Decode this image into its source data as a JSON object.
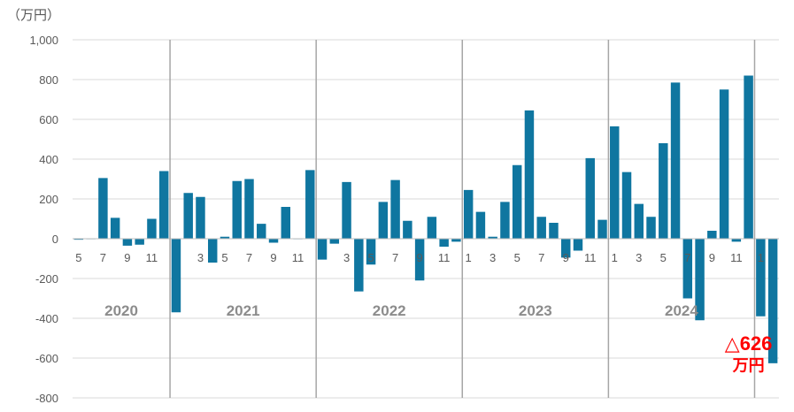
{
  "unit_label": "（万円）",
  "annotation": {
    "value": "△626",
    "unit": "万円",
    "color": "#ff0000"
  },
  "chart_data": {
    "type": "bar",
    "title": "",
    "xlabel": "",
    "ylabel": "（万円）",
    "ylim": [
      -800,
      1000
    ],
    "yticks": [
      1000,
      800,
      600,
      400,
      200,
      0,
      -200,
      -400,
      -600,
      -800
    ],
    "ytick_labels": [
      "1,000",
      "800",
      "600",
      "400",
      "200",
      "0",
      "-200",
      "-400",
      "-600",
      "-800"
    ],
    "grid": true,
    "bar_color": "#0f76a0",
    "years": [
      "2020",
      "2021",
      "2022",
      "2023",
      "2024"
    ],
    "categories": [
      "2020-05",
      "2020-06",
      "2020-07",
      "2020-08",
      "2020-09",
      "2020-10",
      "2020-11",
      "2020-12",
      "2021-01",
      "2021-02",
      "2021-03",
      "2021-04",
      "2021-05",
      "2021-06",
      "2021-07",
      "2021-08",
      "2021-09",
      "2021-10",
      "2021-11",
      "2021-12",
      "2022-01",
      "2022-02",
      "2022-03",
      "2022-04",
      "2022-05",
      "2022-06",
      "2022-07",
      "2022-08",
      "2022-09",
      "2022-10",
      "2022-11",
      "2022-12",
      "2023-01",
      "2023-02",
      "2023-03",
      "2023-04",
      "2023-05",
      "2023-06",
      "2023-07",
      "2023-08",
      "2023-09",
      "2023-10",
      "2023-11",
      "2023-12",
      "2024-01",
      "2024-02",
      "2024-03",
      "2024-04",
      "2024-05",
      "2024-06",
      "2024-07",
      "2024-08",
      "2024-09",
      "2024-10",
      "2024-11",
      "2024-12",
      "2025-01",
      "2025-02"
    ],
    "x_tick_labels": [
      "5",
      "",
      "7",
      "",
      "9",
      "",
      "11",
      "",
      "",
      "",
      "3",
      "",
      "5",
      "",
      "7",
      "",
      "9",
      "",
      "11",
      "",
      "",
      "",
      "3",
      "",
      "5",
      "",
      "7",
      "",
      "9",
      "",
      "11",
      "",
      "1",
      "",
      "3",
      "",
      "5",
      "",
      "7",
      "",
      "9",
      "",
      "11",
      "",
      "1",
      "",
      "3",
      "",
      "5",
      "",
      "7",
      "",
      "9",
      "",
      "11",
      "",
      "1",
      ""
    ],
    "values": [
      -5,
      0,
      305,
      105,
      -35,
      -30,
      100,
      340,
      -370,
      230,
      210,
      -120,
      10,
      290,
      300,
      75,
      -20,
      160,
      0,
      345,
      -105,
      -25,
      285,
      -265,
      -130,
      185,
      295,
      90,
      -210,
      110,
      -40,
      -15,
      245,
      135,
      10,
      185,
      370,
      645,
      110,
      80,
      -95,
      -60,
      405,
      95,
      565,
      335,
      175,
      110,
      480,
      785,
      -300,
      -410,
      40,
      750,
      -15,
      820,
      -390,
      -626
    ]
  }
}
